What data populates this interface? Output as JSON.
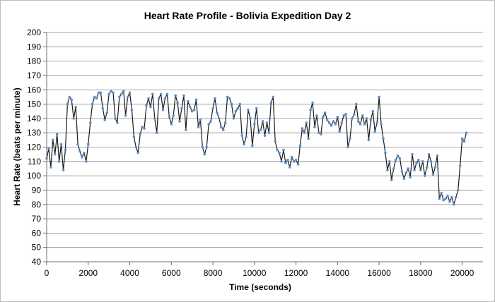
{
  "chart_data": {
    "type": "scatter",
    "title": "Heart Rate Profile - Bolivia Expedition Day 2",
    "xlabel": "Time (seconds)",
    "ylabel": "Heart Rate (beats per minute)",
    "xlim": [
      0,
      21000
    ],
    "ylim": [
      40,
      200
    ],
    "x_ticks": [
      "0",
      "2000",
      "4000",
      "6000",
      "8000",
      "10000",
      "12000",
      "14000",
      "16000",
      "18000",
      "20000"
    ],
    "y_ticks": [
      "200",
      "190",
      "180",
      "170",
      "160",
      "150",
      "140",
      "130",
      "120",
      "110",
      "100",
      "90",
      "80",
      "70",
      "60",
      "50",
      "40"
    ],
    "grid": "horizontal",
    "legend": "none",
    "marker_color": "#5B8FCC",
    "line_color": "#1a1a1a",
    "series": [
      {
        "x": [
          0,
          100,
          200,
          300,
          400,
          500,
          600,
          700,
          800,
          900,
          1000,
          1100,
          1200,
          1300,
          1400,
          1500,
          1600,
          1700,
          1800,
          1900,
          2000,
          2100,
          2200,
          2300,
          2400,
          2500,
          2600,
          2700,
          2800,
          2900,
          3000,
          3100,
          3200,
          3300,
          3400,
          3500,
          3600,
          3700,
          3800,
          3900,
          4000,
          4100,
          4200,
          4300,
          4400,
          4500,
          4600,
          4700,
          4800,
          4900,
          5000,
          5100,
          5200,
          5300,
          5400,
          5500,
          5600,
          5700,
          5800,
          5900,
          6000,
          6100,
          6200,
          6300,
          6400,
          6500,
          6600,
          6700,
          6800,
          6900,
          7000,
          7100,
          7200,
          7300,
          7400,
          7500,
          7600,
          7700,
          7800,
          7900,
          8000,
          8100,
          8200,
          8300,
          8400,
          8500,
          8600,
          8700,
          8800,
          8900,
          9000,
          9100,
          9200,
          9300,
          9400,
          9500,
          9600,
          9700,
          9800,
          9900,
          10000,
          10100,
          10200,
          10300,
          10400,
          10500,
          10600,
          10700,
          10800,
          10900,
          11000,
          11100,
          11200,
          11300,
          11400,
          11500,
          11600,
          11700,
          11800,
          11900,
          12000,
          12100,
          12200,
          12300,
          12400,
          12500,
          12600,
          12700,
          12800,
          12900,
          13000,
          13100,
          13200,
          13300,
          13400,
          13500,
          13600,
          13700,
          13800,
          13900,
          14000,
          14100,
          14200,
          14300,
          14400,
          14500,
          14600,
          14700,
          14800,
          14900,
          15000,
          15100,
          15200,
          15300,
          15400,
          15500,
          15600,
          15700,
          15800,
          15900,
          16000,
          16100,
          16200,
          16300,
          16400,
          16500,
          16600,
          16700,
          16800,
          16900,
          17000,
          17100,
          17200,
          17300,
          17400,
          17500,
          17600,
          17700,
          17800,
          17900,
          18000,
          18100,
          18200,
          18300,
          18400,
          18500,
          18600,
          18700,
          18800,
          18900,
          19000,
          19100,
          19200,
          19300,
          19400,
          19500,
          19600,
          19700,
          19800,
          19900,
          20000,
          20100,
          20200
        ],
        "y": [
          112,
          119,
          106,
          125,
          115,
          129,
          110,
          122,
          104,
          118,
          150,
          155,
          153,
          140,
          148,
          122,
          117,
          113,
          116,
          110,
          122,
          137,
          150,
          155,
          154,
          158,
          158,
          147,
          139,
          144,
          157,
          159,
          158,
          140,
          137,
          155,
          157,
          159,
          142,
          155,
          158,
          146,
          127,
          120,
          116,
          129,
          134,
          133,
          149,
          154,
          148,
          157,
          140,
          130,
          154,
          157,
          146,
          154,
          157,
          141,
          136,
          142,
          156,
          151,
          138,
          147,
          156,
          132,
          152,
          148,
          145,
          146,
          153,
          134,
          139,
          120,
          115,
          120,
          136,
          138,
          147,
          154,
          144,
          140,
          134,
          132,
          137,
          155,
          154,
          150,
          140,
          145,
          147,
          150,
          128,
          122,
          127,
          146,
          140,
          121,
          136,
          147,
          130,
          132,
          138,
          128,
          137,
          130,
          151,
          155,
          124,
          118,
          116,
          110,
          118,
          109,
          111,
          106,
          113,
          110,
          111,
          108,
          121,
          133,
          130,
          137,
          126,
          146,
          151,
          134,
          142,
          130,
          129,
          141,
          144,
          139,
          137,
          135,
          138,
          136,
          141,
          131,
          137,
          142,
          143,
          120,
          126,
          140,
          143,
          150,
          138,
          136,
          142,
          136,
          140,
          125,
          139,
          145,
          131,
          137,
          155,
          136,
          126,
          116,
          104,
          110,
          97,
          105,
          111,
          114,
          112,
          103,
          98,
          102,
          105,
          99,
          115,
          104,
          109,
          111,
          104,
          110,
          100,
          106,
          115,
          110,
          101,
          106,
          114,
          84,
          88,
          83,
          84,
          86,
          82,
          85,
          80,
          85,
          90,
          107,
          126,
          124,
          130
        ]
      }
    ]
  }
}
